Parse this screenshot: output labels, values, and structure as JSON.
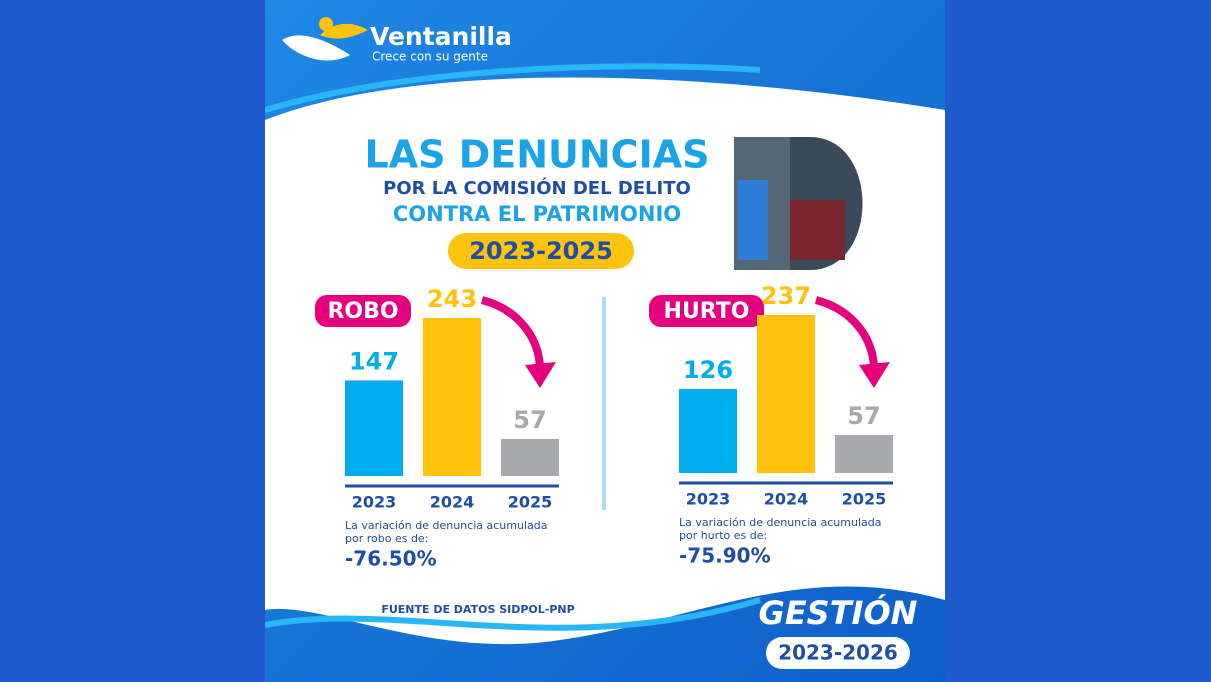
{
  "header": {
    "brand": "Ventanilla",
    "slogan": "Crece con su gente",
    "title": "LAS DENUNCIAS",
    "subtitle_1": "POR LA COMISIÓN DEL DELITO",
    "subtitle_2": "CONTRA EL PATRIMONIO",
    "period": "2023-2025"
  },
  "chart_data": [
    {
      "type": "bar",
      "title": "ROBO",
      "categories": [
        "2023",
        "2024",
        "2025"
      ],
      "values": [
        147,
        243,
        57
      ],
      "colors": [
        "#00aeef",
        "#ffc20e",
        "#a7a9ac"
      ],
      "note": "La variación de denuncia acumulada por robo es de:",
      "note_value": "-76.50%"
    },
    {
      "type": "bar",
      "title": "HURTO",
      "categories": [
        "2023",
        "2024",
        "2025"
      ],
      "values": [
        126,
        237,
        57
      ],
      "colors": [
        "#00aeef",
        "#ffc20e",
        "#a7a9ac"
      ],
      "note": "La variación de denuncia acumulada por hurto es de:",
      "note_value": "-75.90%"
    }
  ],
  "footer": {
    "source": "FUENTE DE DATOS SIDPOL-PNP",
    "gestion": "GESTIÓN",
    "gestion_period": "2023-2026"
  }
}
